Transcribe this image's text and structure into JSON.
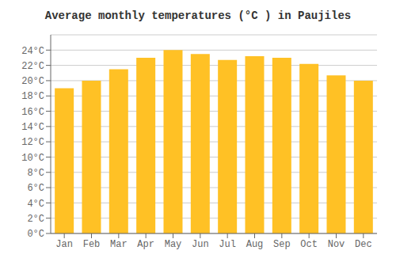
{
  "chart_data": {
    "type": "bar",
    "title": "Average monthly temperatures (°C ) in Paujiles",
    "categories": [
      "Jan",
      "Feb",
      "Mar",
      "Apr",
      "May",
      "Jun",
      "Jul",
      "Aug",
      "Sep",
      "Oct",
      "Nov",
      "Dec"
    ],
    "values": [
      19,
      20,
      21.5,
      23,
      24,
      23.5,
      22.7,
      23.2,
      23,
      22.2,
      20.7,
      20
    ],
    "color": "#FFC125",
    "ylim": [
      0,
      26
    ],
    "yticks": [
      {
        "value": 0,
        "label": "0°C"
      },
      {
        "value": 2,
        "label": "2°C"
      },
      {
        "value": 4,
        "label": "4°C"
      },
      {
        "value": 6,
        "label": "6°C"
      },
      {
        "value": 8,
        "label": "8°C"
      },
      {
        "value": 10,
        "label": "10°C"
      },
      {
        "value": 12,
        "label": "12°C"
      },
      {
        "value": 14,
        "label": "14°C"
      },
      {
        "value": 16,
        "label": "16°C"
      },
      {
        "value": 18,
        "label": "18°C"
      },
      {
        "value": 20,
        "label": "20°C"
      },
      {
        "value": 22,
        "label": "22°C"
      },
      {
        "value": 24,
        "label": "24°C"
      }
    ],
    "grid": true
  }
}
